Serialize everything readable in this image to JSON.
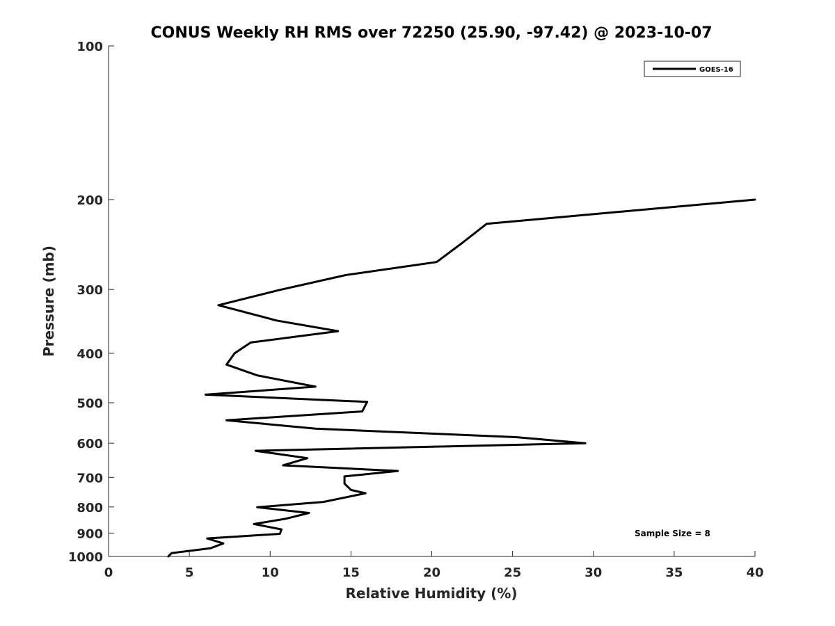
{
  "chart_data": {
    "type": "line",
    "title": "CONUS Weekly RH RMS over 72250 (25.90, -97.42) @ 2023-10-07",
    "xlabel": "Relative Humidity (%)",
    "ylabel": "Pressure (mb)",
    "xlim": [
      0,
      40
    ],
    "ylim": [
      1000,
      100
    ],
    "y_scale": "log",
    "x_ticks": [
      "0",
      "5",
      "10",
      "15",
      "20",
      "25",
      "30",
      "35",
      "40"
    ],
    "y_ticks": [
      "100",
      "200",
      "300",
      "400",
      "500",
      "600",
      "700",
      "800",
      "900",
      "1000"
    ],
    "legend": {
      "placement": "top-right",
      "entries": [
        "GOES-16"
      ]
    },
    "annotation": "Sample Size = 8",
    "series": [
      {
        "name": "GOES-16",
        "color": "#000000",
        "points": [
          [
            40.0,
            200
          ],
          [
            23.4,
            223
          ],
          [
            21.9,
            243
          ],
          [
            20.3,
            265
          ],
          [
            14.7,
            281
          ],
          [
            10.5,
            301
          ],
          [
            6.8,
            322
          ],
          [
            10.4,
            345
          ],
          [
            14.2,
            362
          ],
          [
            8.8,
            381
          ],
          [
            7.8,
            400
          ],
          [
            7.3,
            421
          ],
          [
            9.2,
            442
          ],
          [
            12.8,
            465
          ],
          [
            6.0,
            482
          ],
          [
            16.0,
            498
          ],
          [
            15.7,
            520
          ],
          [
            7.3,
            541
          ],
          [
            12.8,
            562
          ],
          [
            25.2,
            584
          ],
          [
            29.5,
            600
          ],
          [
            9.1,
            621
          ],
          [
            12.3,
            642
          ],
          [
            10.8,
            663
          ],
          [
            17.9,
            680
          ],
          [
            14.6,
            697
          ],
          [
            14.6,
            720
          ],
          [
            15.0,
            741
          ],
          [
            15.9,
            752
          ],
          [
            13.3,
            782
          ],
          [
            9.2,
            801
          ],
          [
            12.4,
            822
          ],
          [
            11.0,
            843
          ],
          [
            9.0,
            864
          ],
          [
            10.7,
            885
          ],
          [
            10.6,
            903
          ],
          [
            6.1,
            922
          ],
          [
            7.1,
            943
          ],
          [
            6.3,
            964
          ],
          [
            3.9,
            985
          ],
          [
            3.7,
            1000
          ]
        ]
      }
    ]
  }
}
